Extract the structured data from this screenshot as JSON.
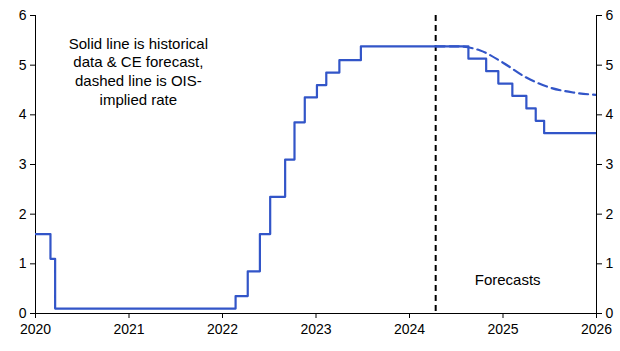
{
  "chart_data": {
    "type": "line",
    "xlim": [
      2020,
      2026
    ],
    "xticks": [
      2020,
      2021,
      2022,
      2023,
      2024,
      2025,
      2026
    ],
    "ylim": [
      0,
      6
    ],
    "yticks": [
      0,
      1,
      2,
      3,
      4,
      5,
      6
    ],
    "grid": false,
    "annotations": [
      {
        "text": [
          "Solid line is historical",
          "data & CE forecast,",
          "dashed line is OIS-",
          "implied rate"
        ],
        "x": 2021.1,
        "y": 5.6
      },
      {
        "text": [
          "Forecasts"
        ],
        "x": 2025.05,
        "y": 0.85
      }
    ],
    "forecast_start": 2024.28,
    "series": [
      {
        "color": "#3255c8",
        "line_style": "solid",
        "x": [
          2020,
          2020.16,
          2020.21,
          2022.14,
          2022.27,
          2022.4,
          2022.51,
          2022.67,
          2022.77,
          2022.88,
          2023.01,
          2023.11,
          2023.25,
          2023.48,
          2024.63,
          2024.82,
          2024.95,
          2025.1,
          2025.25,
          2025.35,
          2025.44,
          2026
        ],
        "values": [
          1.6,
          1.1,
          0.1,
          0.35,
          0.85,
          1.6,
          2.35,
          3.1,
          3.85,
          4.35,
          4.6,
          4.85,
          5.1,
          5.38,
          5.13,
          4.88,
          4.63,
          4.38,
          4.13,
          3.88,
          3.63,
          3.63
        ]
      },
      {
        "color": "#3255c8",
        "line_style": "dashed",
        "x": [
          2024.28,
          2024.5,
          2024.75,
          2025.0,
          2025.25,
          2025.5,
          2025.75,
          2026
        ],
        "values": [
          5.38,
          5.38,
          5.3,
          5.05,
          4.75,
          4.55,
          4.45,
          4.4
        ]
      }
    ]
  }
}
